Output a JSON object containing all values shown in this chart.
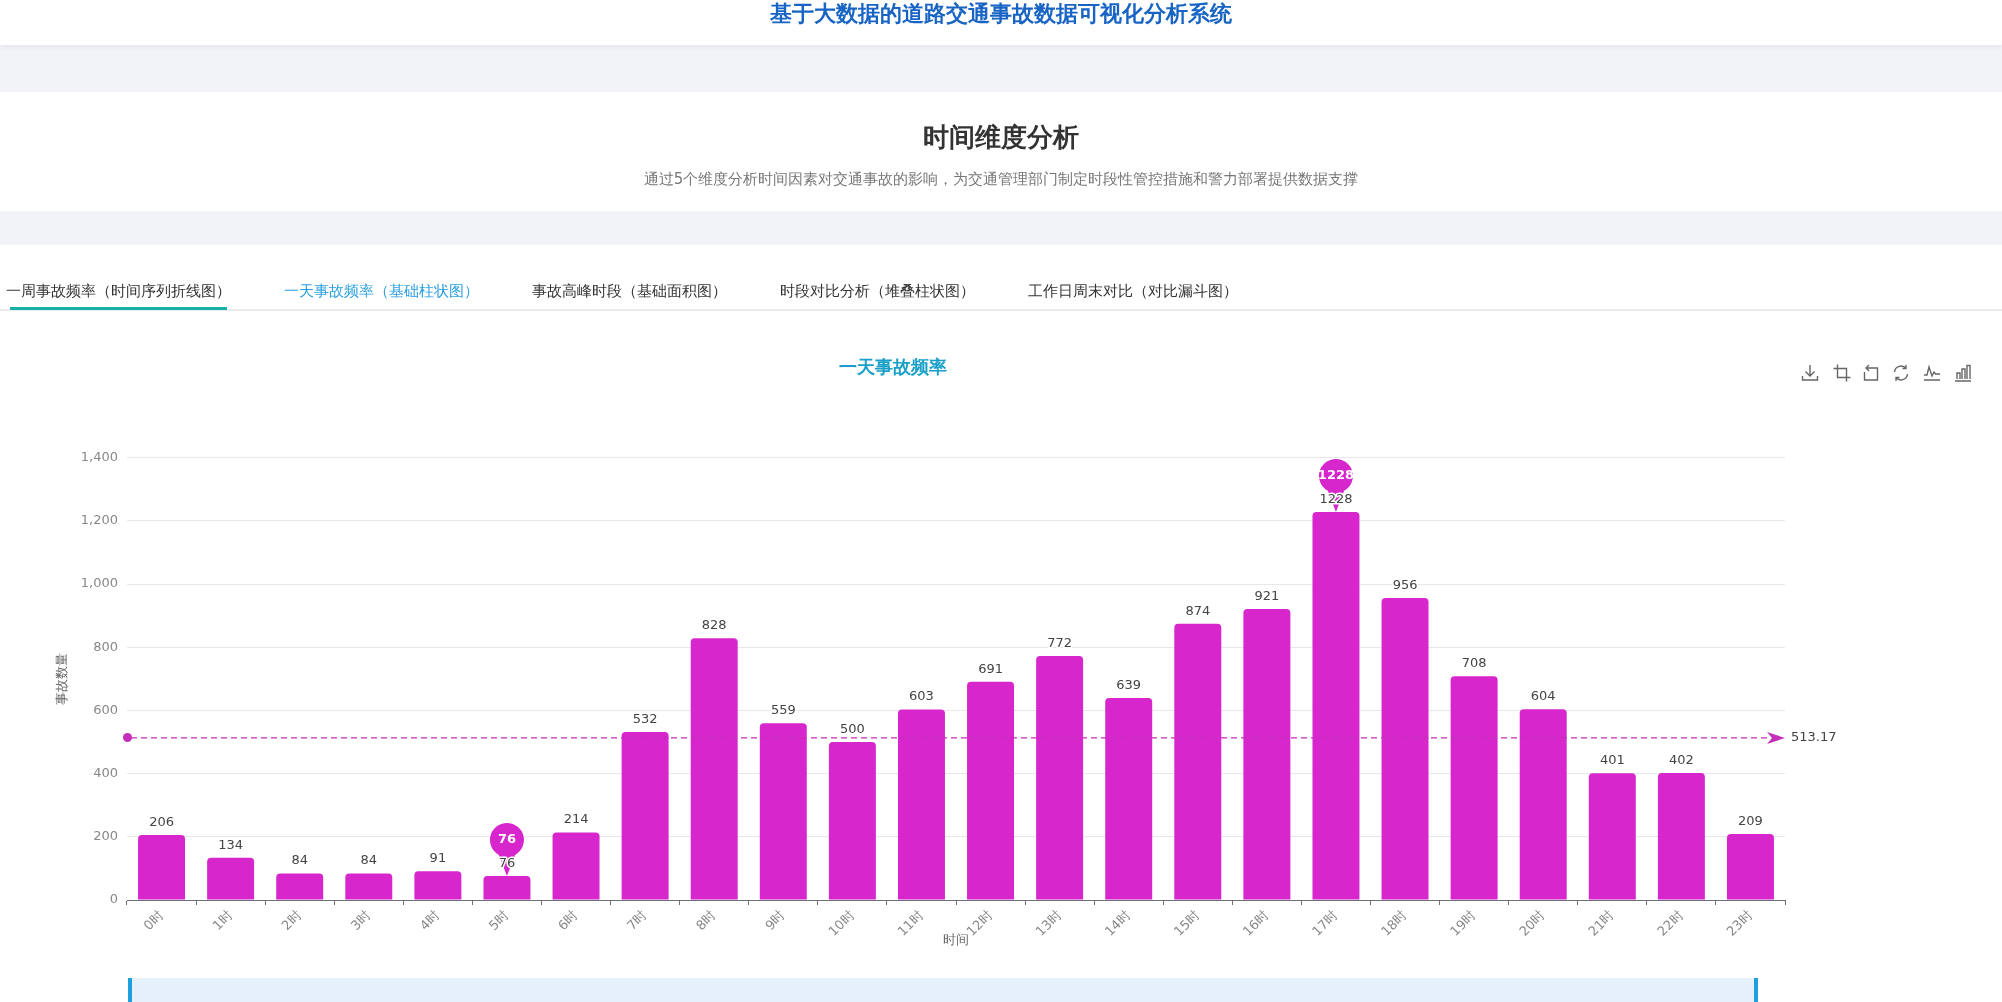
{
  "chart_data": {
    "type": "bar",
    "title": "一天事故频率",
    "xlabel": "时间",
    "ylabel": "事故数量",
    "categories": [
      "0时",
      "1时",
      "2时",
      "3时",
      "4时",
      "5时",
      "6时",
      "7时",
      "8时",
      "9时",
      "10时",
      "11时",
      "12时",
      "13时",
      "14时",
      "15时",
      "16时",
      "17时",
      "18时",
      "19时",
      "20时",
      "21时",
      "22时",
      "23时"
    ],
    "values": [
      206,
      134,
      84,
      84,
      91,
      76,
      214,
      532,
      828,
      559,
      500,
      603,
      691,
      772,
      639,
      874,
      921,
      1228,
      956,
      708,
      604,
      401,
      402,
      209
    ],
    "color": "#d626cc",
    "ylim": [
      0,
      1400
    ],
    "yticks": [
      0,
      200,
      400,
      600,
      800,
      {
        "value": 1000,
        "label": "1,000"
      },
      {
        "value": 1200,
        "label": "1,200"
      },
      {
        "value": 1400,
        "label": "1,400"
      }
    ],
    "grid": "y",
    "data_labels": true,
    "ref_lines": [
      {
        "axis": "y",
        "value": 513.17,
        "label": "513.17",
        "color": "#c42fba",
        "line_style": "dashed"
      }
    ],
    "annotations": [
      "基于大数据的道路交通事故数据可视化分析系统",
      "时间维度分析",
      "通过5个维度分析时间因素对交通事故的影响，为交通管理部门制定时段性管控措施和警力部署提供数据支撑",
      "一周事故频率（时间序列折线图）",
      "一天事故频率（基础柱状图）",
      "事故高峰时段（基础面积图）",
      "时段对比分析（堆叠柱状图）",
      "工作日周末对比（对比漏斗图）",
      {
        "text": "1228",
        "x": "17时",
        "y": 1228
      },
      {
        "text": "76",
        "x": "5时",
        "y": 76
      }
    ]
  }
}
